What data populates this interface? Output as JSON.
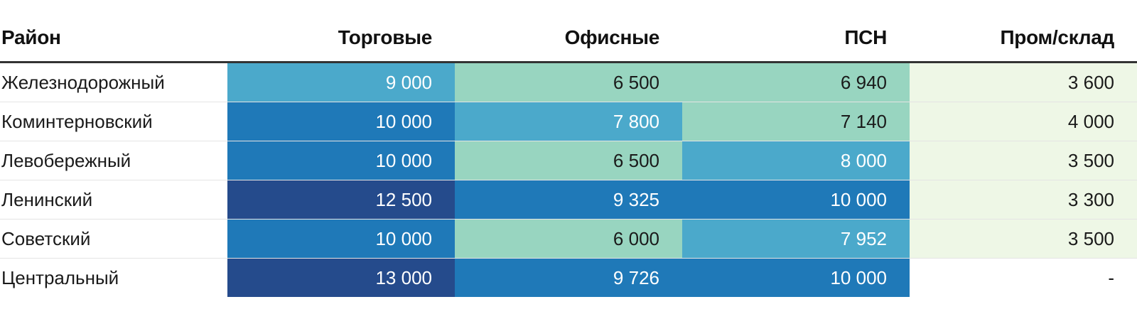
{
  "chart_data": {
    "type": "table",
    "columns": [
      "Район",
      "Торговые",
      "Офисные",
      "ПСН",
      "Пром/склад"
    ],
    "rows": [
      {
        "name": "Железнодорожный",
        "values": [
          "9 000",
          "6 500",
          "6 940",
          "3 600"
        ],
        "levels": [
          3,
          2,
          2,
          1
        ]
      },
      {
        "name": "Коминтерновский",
        "values": [
          "10 000",
          "7 800",
          "7 140",
          "4 000"
        ],
        "levels": [
          4,
          3,
          2,
          1
        ]
      },
      {
        "name": "Левобережный",
        "values": [
          "10 000",
          "6 500",
          "8 000",
          "3 500"
        ],
        "levels": [
          4,
          2,
          3,
          1
        ]
      },
      {
        "name": "Ленинский",
        "values": [
          "12 500",
          "9 325",
          "10 000",
          "3 300"
        ],
        "levels": [
          5,
          4,
          4,
          1
        ]
      },
      {
        "name": "Советский",
        "values": [
          "10 000",
          "6 000",
          "7 952",
          "3 500"
        ],
        "levels": [
          4,
          2,
          3,
          1
        ]
      },
      {
        "name": "Центральный",
        "values": [
          "13 000",
          "9 726",
          "10 000",
          "-"
        ],
        "levels": [
          5,
          4,
          4,
          0
        ]
      }
    ],
    "color_scale": {
      "0": "#ffffff",
      "1": "#eef7e6",
      "2": "#98d5c0",
      "3": "#4ba9cb",
      "4": "#1f79b8",
      "5": "#254b8c"
    }
  }
}
